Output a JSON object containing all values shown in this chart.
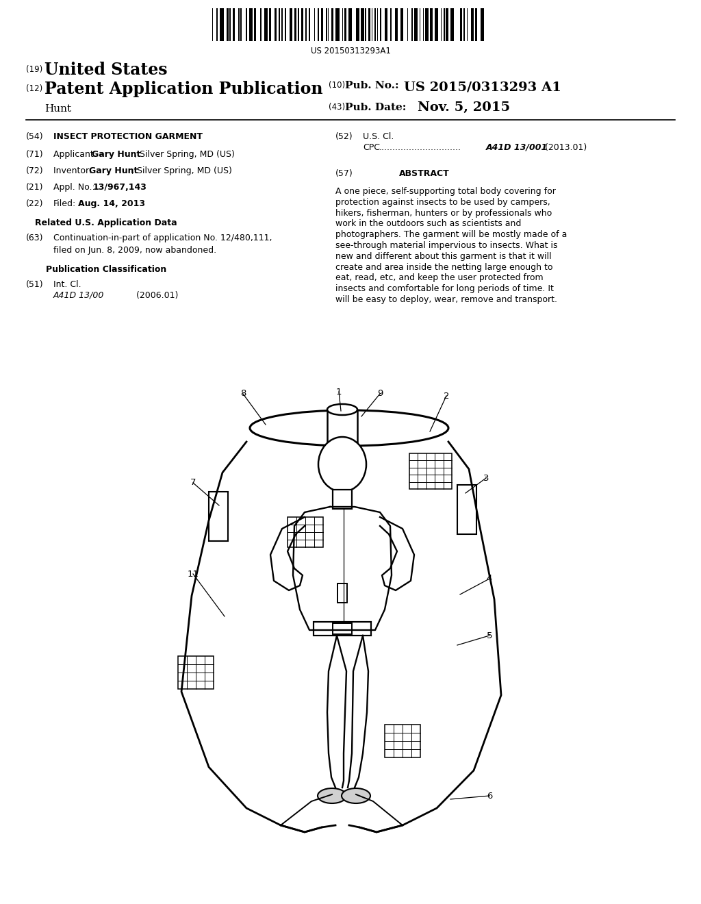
{
  "pub_number": "US 2015/0313293 A1",
  "pub_date": "Nov. 5, 2015",
  "barcode_text": "US 20150313293A1",
  "country": "United States",
  "pub_type": "Patent Application Publication",
  "inventor_last": "Hunt",
  "pub_no_label": "Pub. No.:",
  "pub_date_label": "Pub. Date:",
  "section54_text": "INSECT PROTECTION GARMENT",
  "section22_date": "Aug. 14, 2013",
  "related_header": "Related U.S. Application Data",
  "section63_line1": "Continuation-in-part of application No. 12/480,111,",
  "section63_line2": "filed on Jun. 8, 2009, now abandoned.",
  "pub_class_header": "Publication Classification",
  "section51_class": "A41D 13/00",
  "section51_year": "(2006.01)",
  "section52_cpc_code": "A41D 13/001",
  "section52_cpc_year": "(2013.01)",
  "section57_header": "ABSTRACT",
  "abstract_text": "A one piece, self-supporting total body covering for protection against insects to be used by campers, hikers, fisherman, hunters or by professionals who work in the outdoors such as scientists and photographers. The garment will be mostly made of a see-through material impervious to insects. What is new and different about this garment is that it will create and area inside the netting large enough to eat, read, etc, and keep the user protected from insects and comfortable for long periods of time. It will be easy to deploy, wear, remove and transport.",
  "bg_color": "#ffffff",
  "text_color": "#000000"
}
